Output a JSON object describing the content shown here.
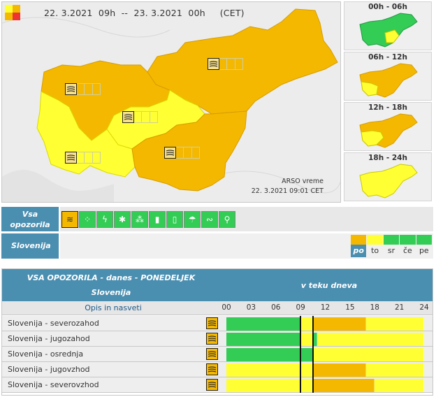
{
  "colors": {
    "green": "#33cc55",
    "yellow": "#ffff33",
    "orange": "#f5b800",
    "red": "#ee3333",
    "header_blue": "#4a8eb0"
  },
  "map": {
    "date_range": "22. 3.2021  09h  --  23. 3.2021  00h     (CET)",
    "credit_line1": "ARSO vreme",
    "credit_line2": "22. 3.2021  09:01 CET"
  },
  "mini_maps": [
    {
      "label": "00h - 06h"
    },
    {
      "label": "06h - 12h"
    },
    {
      "label": "12h - 18h"
    },
    {
      "label": "18h - 24h"
    }
  ],
  "icon_row": {
    "label_line1": "Vsa",
    "label_line2": "opozorila",
    "icons": [
      {
        "name": "wind-icon",
        "glyph": "≋",
        "active": true
      },
      {
        "name": "rain-icon",
        "glyph": "⁘",
        "active": false
      },
      {
        "name": "thunderstorm-icon",
        "glyph": "ϟ",
        "active": false
      },
      {
        "name": "snow-icon",
        "glyph": "✱",
        "active": false
      },
      {
        "name": "snow-rain-icon",
        "glyph": "⁂",
        "active": false
      },
      {
        "name": "high-temperature-icon",
        "glyph": "▮",
        "active": false
      },
      {
        "name": "low-temperature-icon",
        "glyph": "▯",
        "active": false
      },
      {
        "name": "coastal-event-icon",
        "glyph": "☂",
        "active": false
      },
      {
        "name": "fog-icon",
        "glyph": "∾",
        "active": false
      },
      {
        "name": "forest-fire-icon",
        "glyph": "⚲",
        "active": false
      }
    ]
  },
  "region_row": {
    "label": "Slovenija"
  },
  "levels": [
    {
      "abbr": "po",
      "color": "#f5b800",
      "current": true
    },
    {
      "abbr": "to",
      "color": "#ffff33",
      "current": false
    },
    {
      "abbr": "sr",
      "color": "#33cc55",
      "current": false
    },
    {
      "abbr": "če",
      "color": "#33cc55",
      "current": false
    },
    {
      "abbr": "pe",
      "color": "#33cc55",
      "current": false
    }
  ],
  "table": {
    "title": "VSA OPOZORILA - danes - PONEDELJEK",
    "subtitle": "Slovenija",
    "timeline_title": "v teku dneva",
    "desc_header": "Opis in nasveti",
    "hours": [
      "00",
      "03",
      "06",
      "09",
      "12",
      "15",
      "18",
      "21",
      "24"
    ],
    "rows": [
      {
        "name": "Slovenija - severozahod",
        "segments": [
          [
            "g",
            9
          ],
          [
            "y",
            1.5
          ],
          [
            "o",
            6.5
          ],
          [
            "y",
            7
          ]
        ]
      },
      {
        "name": "Slovenija - jugozahod",
        "segments": [
          [
            "g",
            9
          ],
          [
            "y",
            1.5
          ],
          [
            "g",
            0.5
          ],
          [
            "y",
            13
          ]
        ]
      },
      {
        "name": "Slovenija - osrednja",
        "segments": [
          [
            "g",
            10.5
          ],
          [
            "y",
            13.5
          ]
        ]
      },
      {
        "name": "Slovenija - jugovzhod",
        "segments": [
          [
            "y",
            10.5
          ],
          [
            "o",
            6.5
          ],
          [
            "y",
            7
          ]
        ]
      },
      {
        "name": "Slovenija - severovzhod",
        "segments": [
          [
            "y",
            10.5
          ],
          [
            "o",
            7.5
          ],
          [
            "y",
            6
          ]
        ]
      }
    ],
    "current_hour_marks": [
      9,
      10.5
    ]
  }
}
